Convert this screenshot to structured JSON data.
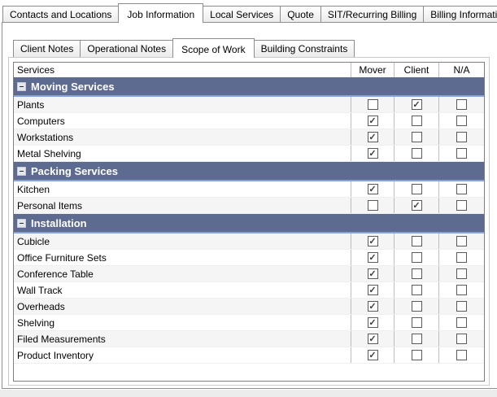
{
  "main_tabs": [
    {
      "label": "Contacts and Locations",
      "active": false
    },
    {
      "label": "Job Information",
      "active": true
    },
    {
      "label": "Local Services",
      "active": false
    },
    {
      "label": "Quote",
      "active": false
    },
    {
      "label": "SIT/Recurring Billing",
      "active": false
    },
    {
      "label": "Billing Information",
      "active": false
    }
  ],
  "sub_tabs": [
    {
      "label": "Client Notes",
      "active": false
    },
    {
      "label": "Operational Notes",
      "active": false
    },
    {
      "label": "Scope of Work",
      "active": true
    },
    {
      "label": "Building Constraints",
      "active": false
    }
  ],
  "services_grid": {
    "columns": [
      {
        "key": "services",
        "label": "Services"
      },
      {
        "key": "mover",
        "label": "Mover"
      },
      {
        "key": "client",
        "label": "Client"
      },
      {
        "key": "na",
        "label": "N/A"
      }
    ],
    "groups": [
      {
        "label": "Moving Services",
        "collapse_icon": "minus-box-icon",
        "rows": [
          {
            "label": "Plants",
            "mover": false,
            "client": true,
            "na": false
          },
          {
            "label": "Computers",
            "mover": true,
            "client": false,
            "na": false
          },
          {
            "label": "Workstations",
            "mover": true,
            "client": false,
            "na": false
          },
          {
            "label": "Metal Shelving",
            "mover": true,
            "client": false,
            "na": false
          }
        ]
      },
      {
        "label": "Packing Services",
        "collapse_icon": "minus-box-icon",
        "rows": [
          {
            "label": "Kitchen",
            "mover": true,
            "client": false,
            "na": false
          },
          {
            "label": "Personal Items",
            "mover": false,
            "client": true,
            "na": false
          }
        ]
      },
      {
        "label": "Installation",
        "collapse_icon": "minus-box-icon",
        "rows": [
          {
            "label": "Cubicle",
            "mover": true,
            "client": false,
            "na": false
          },
          {
            "label": "Office Furniture Sets",
            "mover": true,
            "client": false,
            "na": false
          },
          {
            "label": "Conference Table",
            "mover": true,
            "client": false,
            "na": false
          },
          {
            "label": "Wall Track",
            "mover": true,
            "client": false,
            "na": false
          },
          {
            "label": "Overheads",
            "mover": true,
            "client": false,
            "na": false
          },
          {
            "label": "Shelving",
            "mover": true,
            "client": false,
            "na": false
          },
          {
            "label": "Filed Measurements",
            "mover": true,
            "client": false,
            "na": false
          },
          {
            "label": "Product Inventory",
            "mover": true,
            "client": false,
            "na": false
          }
        ]
      }
    ]
  },
  "colors": {
    "group_header_bg": "#5c6b8f",
    "group_header_underline": "#84a3da",
    "panel_border": "#8f8f8f",
    "grid_border": "#7f7f7f",
    "alt_row_bg": "#f5f5f5",
    "check_mark": "#3d3d3d"
  }
}
